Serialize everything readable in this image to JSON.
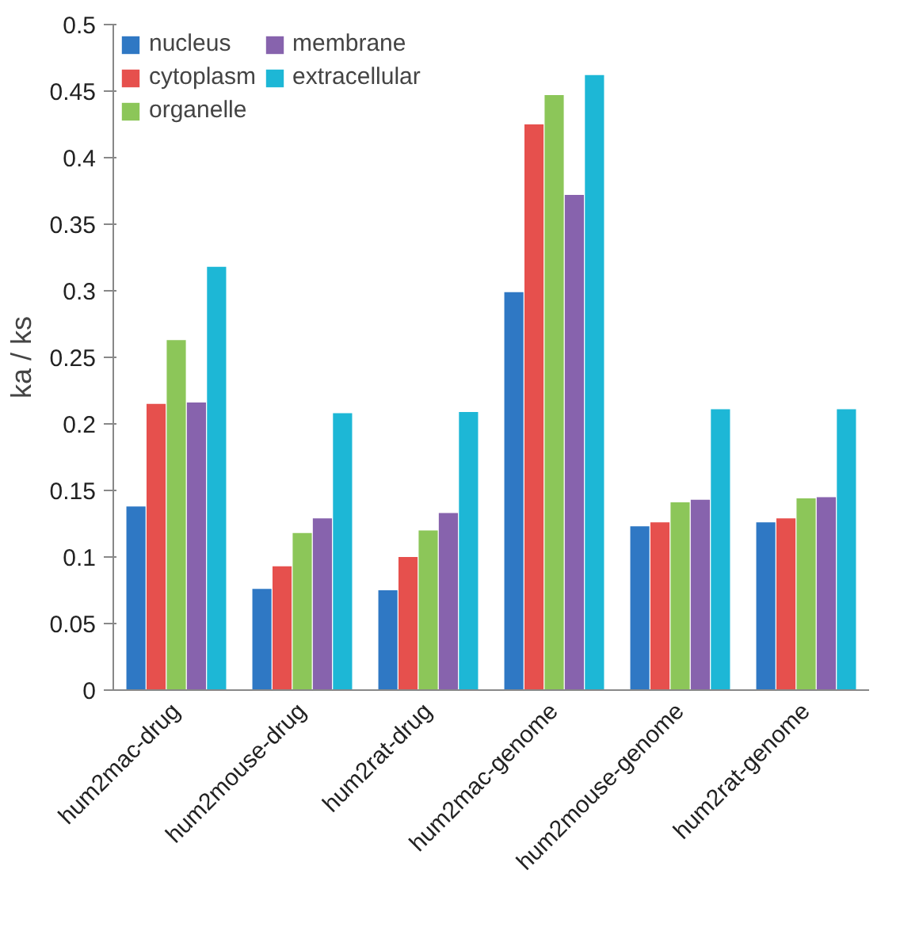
{
  "chart_data": {
    "type": "bar",
    "ylabel": "ka / ks",
    "categories": [
      "hum2mac-drug",
      "hum2mouse-drug",
      "hum2rat-drug",
      "hum2mac-genome",
      "hum2mouse-genome",
      "hum2rat-genome"
    ],
    "series": [
      {
        "name": "nucleus",
        "color": "#2f78c4",
        "values": [
          0.138,
          0.076,
          0.075,
          0.299,
          0.123,
          0.126
        ]
      },
      {
        "name": "cytoplasm",
        "color": "#e6504d",
        "values": [
          0.215,
          0.093,
          0.1,
          0.425,
          0.126,
          0.129
        ]
      },
      {
        "name": "organelle",
        "color": "#8cc659",
        "values": [
          0.263,
          0.118,
          0.12,
          0.447,
          0.141,
          0.144
        ]
      },
      {
        "name": "membrane",
        "color": "#8763ad",
        "values": [
          0.216,
          0.129,
          0.133,
          0.372,
          0.143,
          0.145
        ]
      },
      {
        "name": "extracellular",
        "color": "#1db7d6",
        "values": [
          0.318,
          0.208,
          0.209,
          0.462,
          0.211,
          0.211
        ]
      }
    ],
    "ylim": [
      0,
      0.5
    ],
    "yticks": [
      0,
      0.05,
      0.1,
      0.15,
      0.2,
      0.25,
      0.3,
      0.35,
      0.4,
      0.45,
      0.5
    ],
    "grid": false,
    "legend": "top left"
  }
}
